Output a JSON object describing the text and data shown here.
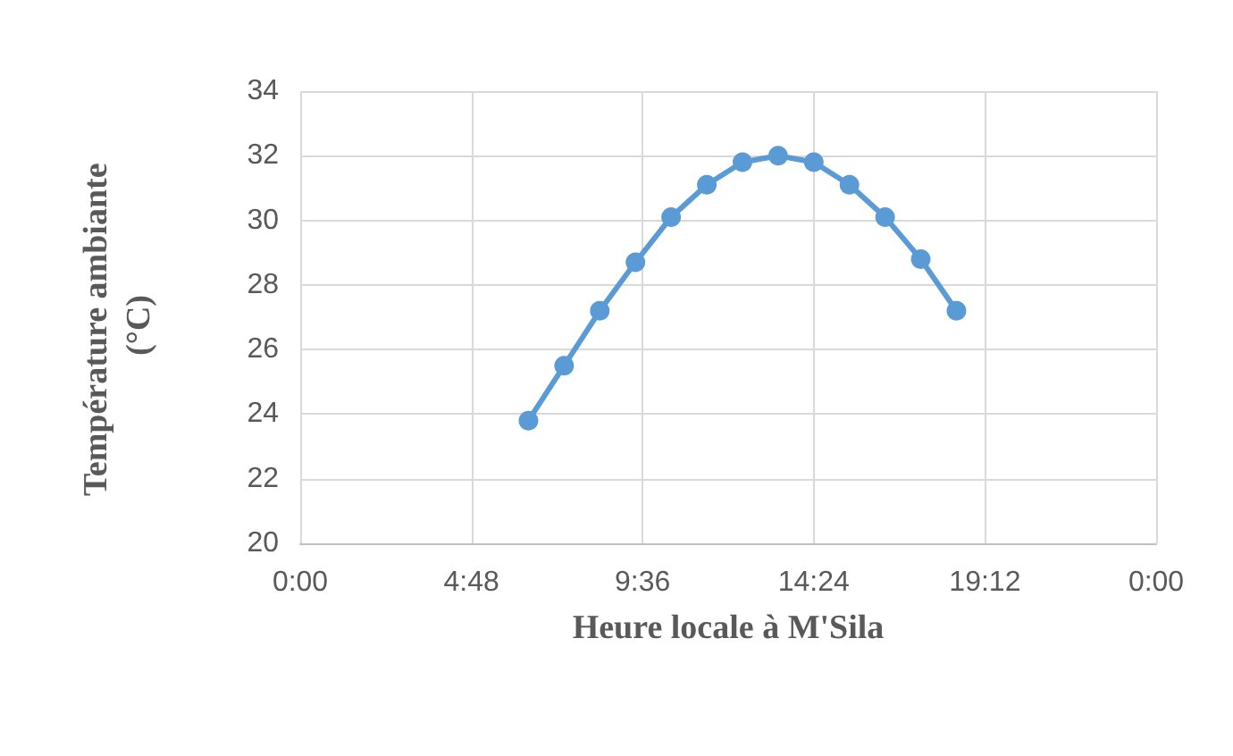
{
  "chart_data": {
    "type": "line",
    "xlabel": "Heure locale à M'Sila",
    "ylabel": "Température ambiante (°C)",
    "x": [
      6.4,
      7.4,
      8.4,
      9.4,
      10.4,
      11.4,
      12.4,
      13.4,
      14.4,
      15.4,
      16.4,
      17.4,
      18.4
    ],
    "series": [
      {
        "color": "#5b9bd5",
        "values": [
          23.8,
          25.5,
          27.2,
          28.7,
          30.1,
          31.1,
          31.8,
          32.0,
          31.8,
          31.1,
          30.1,
          28.8,
          27.2
        ]
      }
    ],
    "xlim": [
      0,
      24
    ],
    "xticks": [
      {
        "value": 0,
        "label": "0:00"
      },
      {
        "value": 4.8,
        "label": "4:48"
      },
      {
        "value": 9.6,
        "label": "9:36"
      },
      {
        "value": 14.4,
        "label": "14:24"
      },
      {
        "value": 19.2,
        "label": "19:12"
      },
      {
        "value": 24,
        "label": "0:00"
      }
    ],
    "ylim": [
      20,
      34
    ],
    "yticks": [
      20,
      22,
      24,
      26,
      28,
      30,
      32,
      34
    ],
    "grid": true,
    "marker": "circle",
    "line_style": "solid"
  }
}
